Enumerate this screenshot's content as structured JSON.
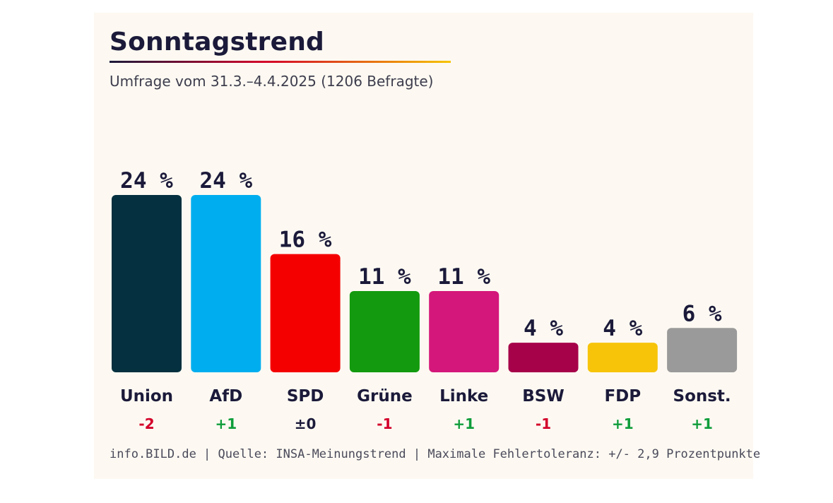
{
  "chart_data": {
    "type": "bar",
    "title": "Sonntagstrend",
    "subtitle": "Umfrage vom 31.3.–4.4.2025 (1206 Befragte)",
    "categories": [
      "Union",
      "AfD",
      "SPD",
      "Grüne",
      "Linke",
      "BSW",
      "FDP",
      "Sonst."
    ],
    "values": [
      24,
      24,
      16,
      11,
      11,
      4,
      4,
      6
    ],
    "value_labels": [
      "24 %",
      "24 %",
      "16 %",
      "11 %",
      "11 %",
      "4 %",
      "4 %",
      "6 %"
    ],
    "changes": [
      "-2",
      "+1",
      "±0",
      "-1",
      "+1",
      "-1",
      "+1",
      "+1"
    ],
    "colors": [
      "#04303f",
      "#00aeef",
      "#f50000",
      "#139a0e",
      "#d4177a",
      "#a6024a",
      "#f7c40a",
      "#9a9a9a"
    ],
    "change_colors": {
      "negative": "#d3002a",
      "positive": "#0f9d3b",
      "neutral": "#1b1a3a"
    },
    "ylim": [
      0,
      24
    ],
    "xlabel": "",
    "ylabel": ""
  },
  "footer": "info.BILD.de | Quelle: INSA-Meinungstrend | Maximale Fehlertoleranz: +/- 2,9 Prozentpunkte"
}
